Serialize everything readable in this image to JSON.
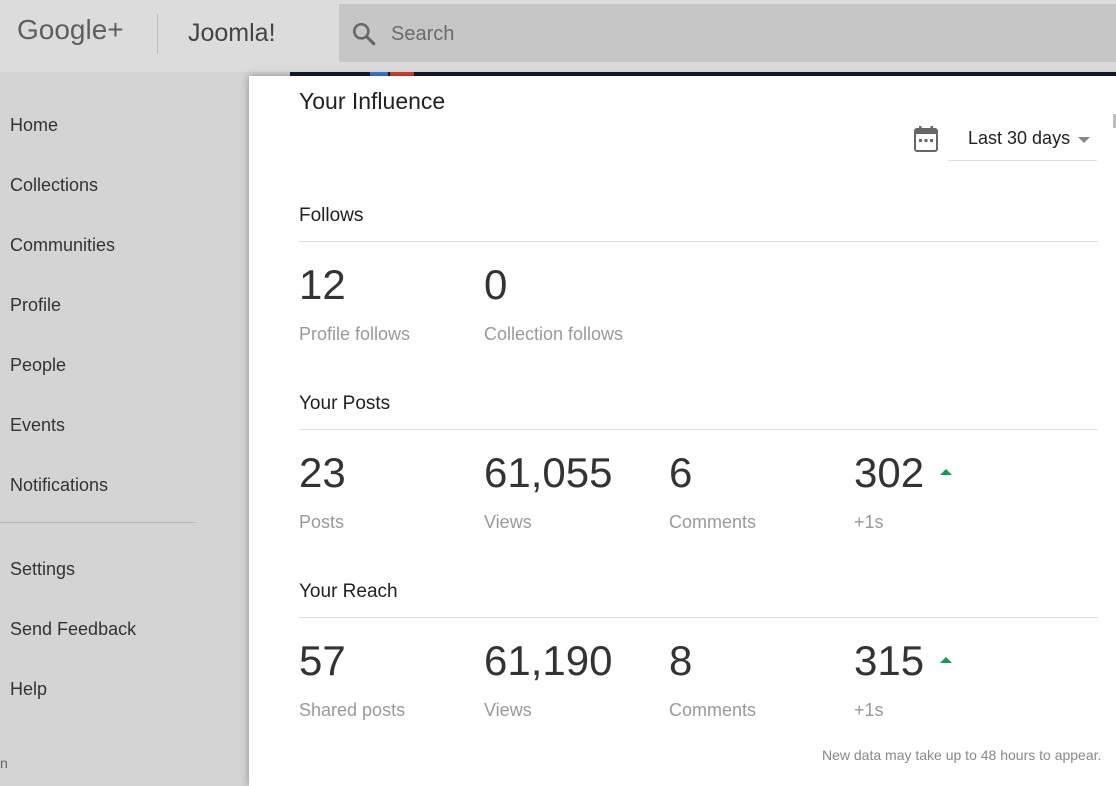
{
  "header": {
    "logo": "Google+",
    "page_name": "Joomla!",
    "search_placeholder": "Search"
  },
  "sidebar": {
    "items": [
      {
        "label": "Home"
      },
      {
        "label": "Collections"
      },
      {
        "label": "Communities"
      },
      {
        "label": "Profile"
      },
      {
        "label": "People"
      },
      {
        "label": "Events"
      },
      {
        "label": "Notifications"
      },
      {
        "label": "Settings"
      },
      {
        "label": "Send Feedback"
      },
      {
        "label": "Help"
      }
    ],
    "footer_fragment": "n"
  },
  "card": {
    "title": "Your Influence",
    "date_range": "Last 30 days",
    "sections": {
      "follows": {
        "title": "Follows",
        "stats": [
          {
            "value": "12",
            "label": "Profile follows"
          },
          {
            "value": "0",
            "label": "Collection follows"
          }
        ]
      },
      "posts": {
        "title": "Your Posts",
        "stats": [
          {
            "value": "23",
            "label": "Posts"
          },
          {
            "value": "61,055",
            "label": "Views"
          },
          {
            "value": "6",
            "label": "Comments"
          },
          {
            "value": "302",
            "label": "+1s",
            "trend": "up"
          }
        ]
      },
      "reach": {
        "title": "Your Reach",
        "stats": [
          {
            "value": "57",
            "label": "Shared posts"
          },
          {
            "value": "61,190",
            "label": "Views"
          },
          {
            "value": "8",
            "label": "Comments"
          },
          {
            "value": "315",
            "label": "+1s",
            "trend": "up"
          }
        ]
      }
    },
    "footnote": "New data may take up to 48 hours to appear."
  },
  "colors": {
    "trend_up": "#0f9d58",
    "sidebar_bg": "#d4d4d4",
    "card_bg": "#ffffff"
  }
}
